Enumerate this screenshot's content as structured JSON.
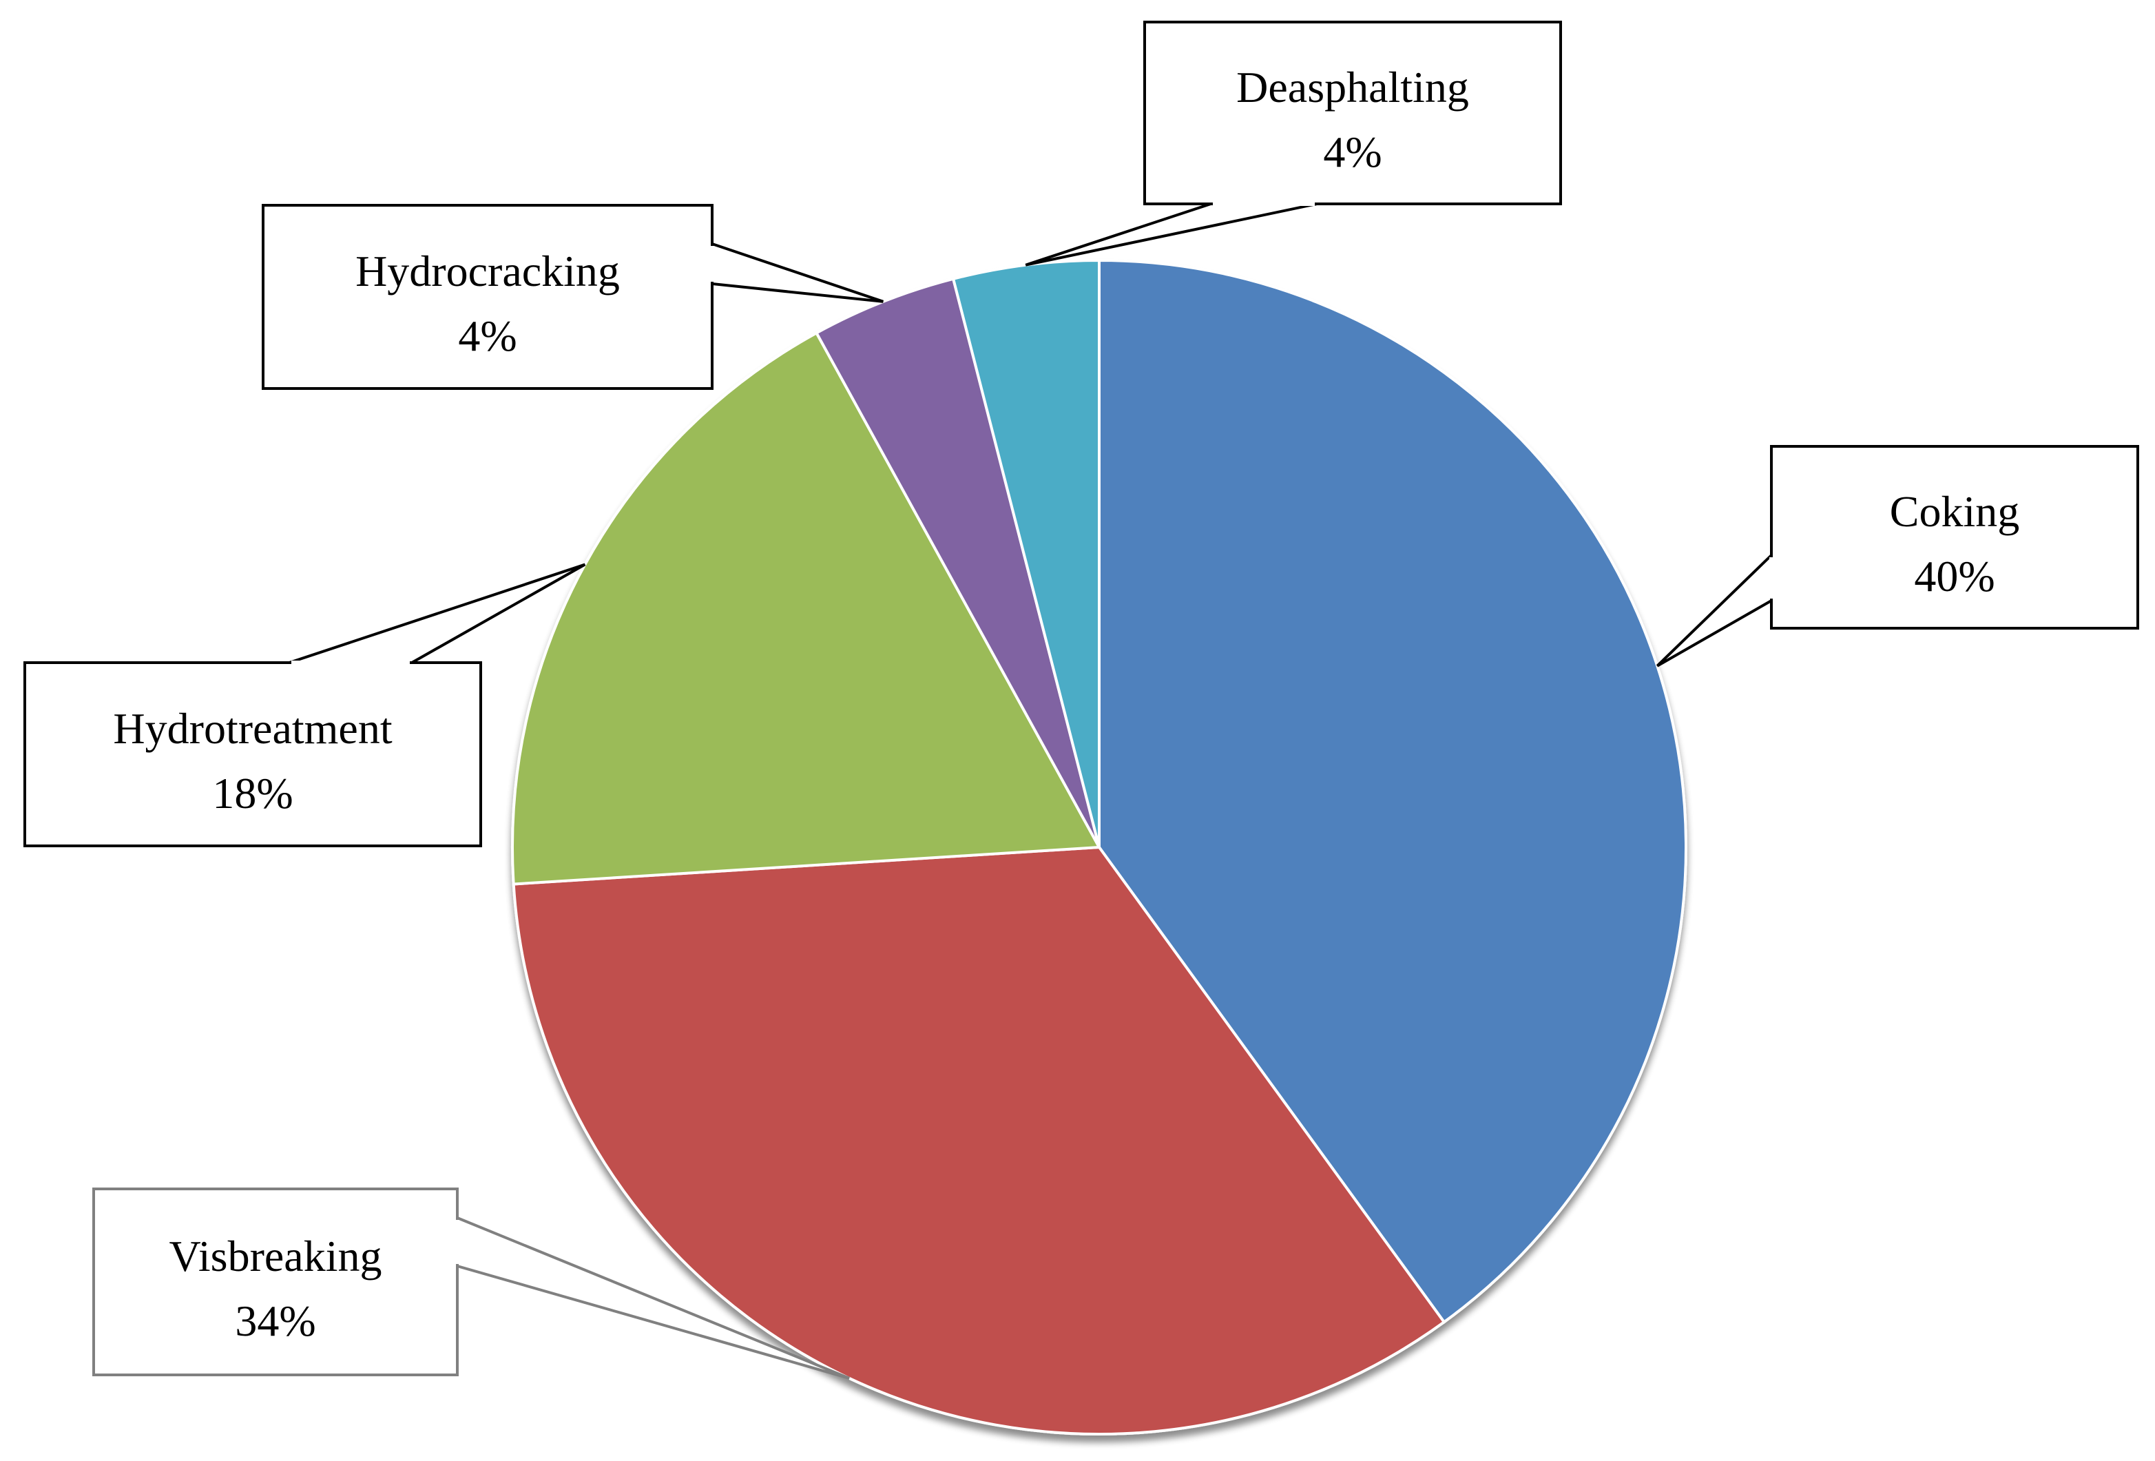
{
  "chart_data": {
    "type": "pie",
    "title": "",
    "start_angle": "12 o'clock",
    "direction": "clockwise",
    "slices": [
      {
        "label": "Coking",
        "value": 40,
        "value_label": "40%",
        "color": "#4F81BD"
      },
      {
        "label": "Visbreaking",
        "value": 34,
        "value_label": "34%",
        "color": "#C0504D"
      },
      {
        "label": "Hydrotreatment",
        "value": 18,
        "value_label": "18%",
        "color": "#9BBB59"
      },
      {
        "label": "Hydrocracking",
        "value": 4,
        "value_label": "4%",
        "color": "#8064A2"
      },
      {
        "label": "Deasphalting",
        "value": 4,
        "value_label": "4%",
        "color": "#4BACC6"
      }
    ],
    "data_labels": "callouts with leader lines",
    "legend": "none"
  }
}
